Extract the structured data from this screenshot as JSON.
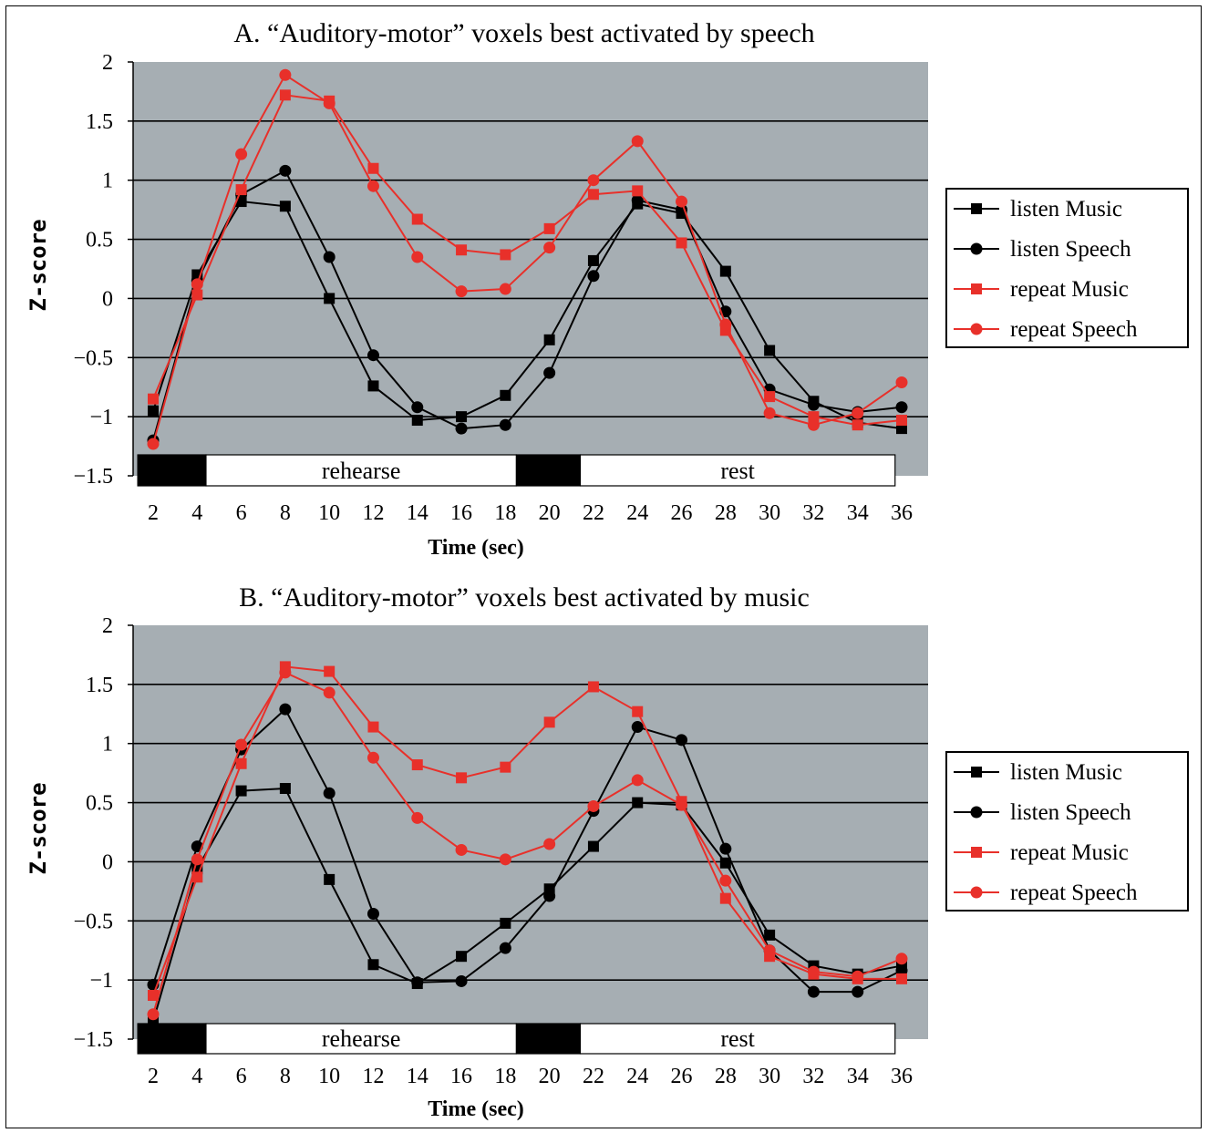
{
  "colors": {
    "plot_bg": "#a6aeb3",
    "black_series": "#000000",
    "red_series": "#e8302a",
    "grid": "#000000"
  },
  "chart_data": [
    {
      "type": "line",
      "title": "A. “Auditory-motor” voxels best activated by speech",
      "xlabel": "Time (sec)",
      "ylabel": "Z-score",
      "x": [
        2,
        4,
        6,
        8,
        10,
        12,
        14,
        16,
        18,
        20,
        22,
        24,
        26,
        28,
        30,
        32,
        34,
        36
      ],
      "yticks": [
        "2",
        "1.5",
        "1",
        "0.5",
        "0",
        "−0.5",
        "−1",
        "−1.5"
      ],
      "ylim": [
        -1.5,
        2
      ],
      "grid": true,
      "legend_position": "right",
      "bands": [
        {
          "label": "",
          "start": 1.3,
          "end": 4.4,
          "fill": "black"
        },
        {
          "label": "rehearse",
          "start": 4.4,
          "end": 18.5,
          "fill": "white"
        },
        {
          "label": "",
          "start": 18.5,
          "end": 21.4,
          "fill": "black"
        },
        {
          "label": "rest",
          "start": 21.4,
          "end": 35.7,
          "fill": "white"
        }
      ],
      "series": [
        {
          "name": "listen Music",
          "color": "#000000",
          "marker": "square",
          "values": [
            -0.95,
            0.2,
            0.82,
            0.78,
            0.0,
            -0.74,
            -1.03,
            -1.0,
            -0.82,
            -0.35,
            0.32,
            0.8,
            0.72,
            0.23,
            -0.44,
            -0.87,
            -1.05,
            -1.1
          ]
        },
        {
          "name": "listen Speech",
          "color": "#000000",
          "marker": "circle",
          "values": [
            -1.2,
            0.15,
            0.88,
            1.08,
            0.35,
            -0.48,
            -0.92,
            -1.1,
            -1.07,
            -0.63,
            0.19,
            0.83,
            0.75,
            -0.11,
            -0.77,
            -0.9,
            -0.96,
            -0.92
          ]
        },
        {
          "name": "repeat Music",
          "color": "#e8302a",
          "marker": "square",
          "values": [
            -0.85,
            0.03,
            0.92,
            1.72,
            1.67,
            1.1,
            0.67,
            0.41,
            0.37,
            0.59,
            0.88,
            0.91,
            0.47,
            -0.27,
            -0.83,
            -1.0,
            -1.07,
            -1.03
          ]
        },
        {
          "name": "repeat Speech",
          "color": "#e8302a",
          "marker": "circle",
          "values": [
            -1.23,
            0.12,
            1.22,
            1.89,
            1.65,
            0.95,
            0.35,
            0.06,
            0.08,
            0.43,
            1.0,
            1.33,
            0.82,
            -0.22,
            -0.97,
            -1.07,
            -0.97,
            -0.71
          ]
        }
      ]
    },
    {
      "type": "line",
      "title": "B. “Auditory-motor”  voxels best activated by music",
      "xlabel": "Time (sec)",
      "ylabel": "Z-score",
      "x": [
        2,
        4,
        6,
        8,
        10,
        12,
        14,
        16,
        18,
        20,
        22,
        24,
        26,
        28,
        30,
        32,
        34,
        36
      ],
      "yticks": [
        "2",
        "1.5",
        "1",
        "0.5",
        "0",
        "−0.5",
        "−1",
        "−1.5"
      ],
      "ylim": [
        -1.5,
        2
      ],
      "grid": true,
      "legend_position": "right",
      "bands": [
        {
          "label": "",
          "start": 1.3,
          "end": 4.4,
          "fill": "black"
        },
        {
          "label": "rehearse",
          "start": 4.4,
          "end": 18.5,
          "fill": "white"
        },
        {
          "label": "",
          "start": 18.5,
          "end": 21.4,
          "fill": "black"
        },
        {
          "label": "rest",
          "start": 21.4,
          "end": 35.7,
          "fill": "white"
        }
      ],
      "series": [
        {
          "name": "listen Music",
          "color": "#000000",
          "marker": "square",
          "values": [
            -1.35,
            -0.06,
            0.6,
            0.62,
            -0.15,
            -0.87,
            -1.03,
            -0.8,
            -0.52,
            -0.23,
            0.13,
            0.5,
            0.48,
            -0.01,
            -0.62,
            -0.88,
            -0.95,
            -0.88
          ]
        },
        {
          "name": "listen Speech",
          "color": "#000000",
          "marker": "circle",
          "values": [
            -1.04,
            0.13,
            0.95,
            1.29,
            0.58,
            -0.44,
            -1.02,
            -1.01,
            -0.73,
            -0.29,
            0.43,
            1.14,
            1.03,
            0.11,
            -0.75,
            -1.1,
            -1.1,
            -0.92
          ]
        },
        {
          "name": "repeat Music",
          "color": "#e8302a",
          "marker": "square",
          "values": [
            -1.13,
            -0.13,
            0.83,
            1.65,
            1.61,
            1.14,
            0.82,
            0.71,
            0.8,
            1.18,
            1.48,
            1.27,
            0.51,
            -0.31,
            -0.8,
            -0.95,
            -0.99,
            -0.99
          ]
        },
        {
          "name": "repeat Speech",
          "color": "#e8302a",
          "marker": "circle",
          "values": [
            -1.29,
            0.02,
            0.99,
            1.6,
            1.43,
            0.88,
            0.37,
            0.1,
            0.02,
            0.15,
            0.47,
            0.69,
            0.48,
            -0.16,
            -0.75,
            -0.93,
            -0.97,
            -0.82
          ]
        }
      ]
    }
  ]
}
